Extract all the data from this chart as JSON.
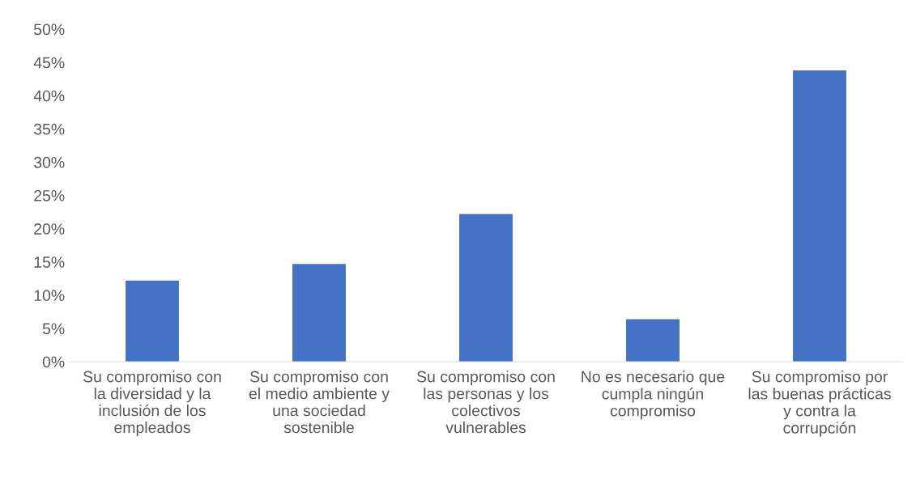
{
  "chart_data": {
    "type": "bar",
    "categories": [
      "Su compromiso con\nla diversidad y la\ninclusión de los\nempleados",
      "Su compromiso con\nel medio ambiente y\nuna sociedad\nsostenible",
      "Su compromiso con\nlas personas y los\ncolectivos\nvulnerables",
      "No es necesario que\ncumpla ningún\ncompromiso",
      "Su compromiso por\nlas buenas prácticas\ny contra la\ncorrupción"
    ],
    "values": [
      12.2,
      14.7,
      22.2,
      6.4,
      43.8
    ],
    "color": "#4472c4",
    "ylim": [
      0,
      50
    ],
    "yticks": [
      {
        "value": 0,
        "label": "0%"
      },
      {
        "value": 5,
        "label": "5%"
      },
      {
        "value": 10,
        "label": "10%"
      },
      {
        "value": 15,
        "label": "15%"
      },
      {
        "value": 20,
        "label": "20%"
      },
      {
        "value": 25,
        "label": "25%"
      },
      {
        "value": 30,
        "label": "30%"
      },
      {
        "value": 35,
        "label": "35%"
      },
      {
        "value": 40,
        "label": "40%"
      },
      {
        "value": 45,
        "label": "45%"
      },
      {
        "value": 50,
        "label": "50%"
      }
    ],
    "grid": false,
    "legend": false
  }
}
